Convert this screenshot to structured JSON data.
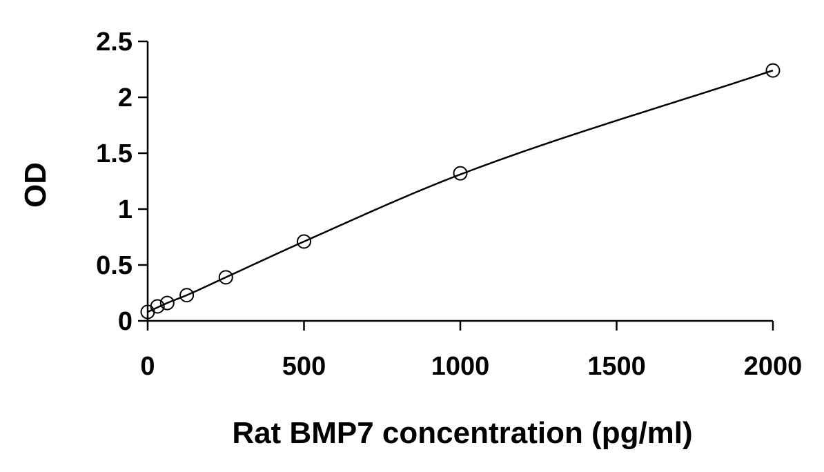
{
  "chart_data": {
    "type": "scatter",
    "title": "",
    "xlabel": "Rat BMP7 concentration (pg/ml)",
    "ylabel": "OD",
    "xlim": [
      0,
      2000
    ],
    "ylim": [
      0,
      2.5
    ],
    "xticks": [
      0,
      500,
      1000,
      1500,
      2000
    ],
    "xtick_labels": [
      "0",
      "500",
      "1000",
      "1500",
      "2000"
    ],
    "yticks": [
      0,
      0.5,
      1,
      1.5,
      2,
      2.5
    ],
    "ytick_labels": [
      "0",
      "0.5",
      "1",
      "1.5",
      "2",
      "2.5"
    ],
    "grid": false,
    "legend": "none",
    "series": [
      {
        "marker": "open-circle",
        "x": [
          0,
          31.25,
          62.5,
          125,
          250,
          500,
          1000,
          2000
        ],
        "y": [
          0.08,
          0.13,
          0.16,
          0.23,
          0.39,
          0.71,
          1.32,
          2.24
        ]
      }
    ],
    "fit_curve": {
      "type": "smooth",
      "x": [
        0,
        31.25,
        62.5,
        125,
        250,
        500,
        1000,
        2000
      ],
      "y": [
        0.08,
        0.12,
        0.16,
        0.23,
        0.39,
        0.71,
        1.31,
        2.24
      ]
    },
    "colors": {
      "axis": "#000000",
      "line": "#000000",
      "marker_fill": "#ffffff",
      "marker_stroke": "#000000"
    }
  }
}
